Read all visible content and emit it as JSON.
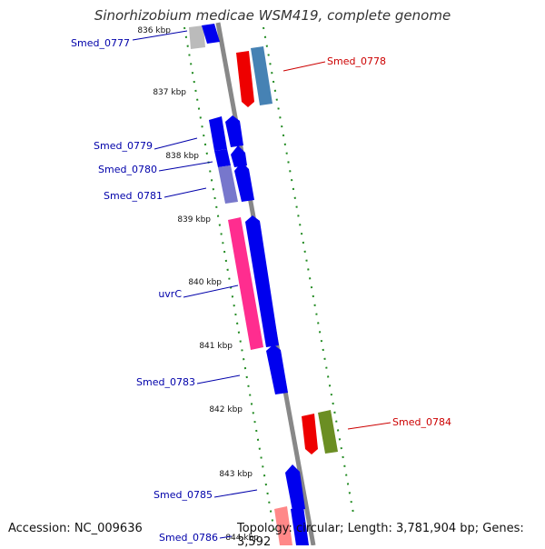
{
  "title": "Sinorhizobium medicae WSM419, complete genome",
  "accession": "Accession: NC_009636",
  "topology": "Topology: circular; Length: 3,781,904 bp; Genes: 3,592",
  "colors": {
    "backbone": "#888888",
    "tick": "#228b22",
    "gene_forward": "#0000ee",
    "label_blue": "#0000aa",
    "label_red": "#cc0000"
  },
  "kbp_labels": [
    {
      "text": "836 kbp",
      "kb": 836
    },
    {
      "text": "837 kbp",
      "kb": 837
    },
    {
      "text": "838 kbp",
      "kb": 838
    },
    {
      "text": "839 kbp",
      "kb": 839
    },
    {
      "text": "840 kbp",
      "kb": 840
    },
    {
      "text": "841 kbp",
      "kb": 841
    },
    {
      "text": "842 kbp",
      "kb": 842
    },
    {
      "text": "843 kbp",
      "kb": 843
    },
    {
      "text": "844 kbp",
      "kb": 844
    }
  ],
  "gene_labels": [
    {
      "text": "Smed_0777",
      "color": "#0000aa"
    },
    {
      "text": "Smed_0778",
      "color": "#cc0000"
    },
    {
      "text": "Smed_0779",
      "color": "#0000aa"
    },
    {
      "text": "Smed_0780",
      "color": "#0000aa"
    },
    {
      "text": "Smed_0781",
      "color": "#0000aa"
    },
    {
      "text": "uvrC",
      "color": "#0000aa"
    },
    {
      "text": "Smed_0783",
      "color": "#0000aa"
    },
    {
      "text": "Smed_0784",
      "color": "#cc0000"
    },
    {
      "text": "Smed_0785",
      "color": "#0000aa"
    },
    {
      "text": "Smed_0786",
      "color": "#0000aa"
    }
  ]
}
